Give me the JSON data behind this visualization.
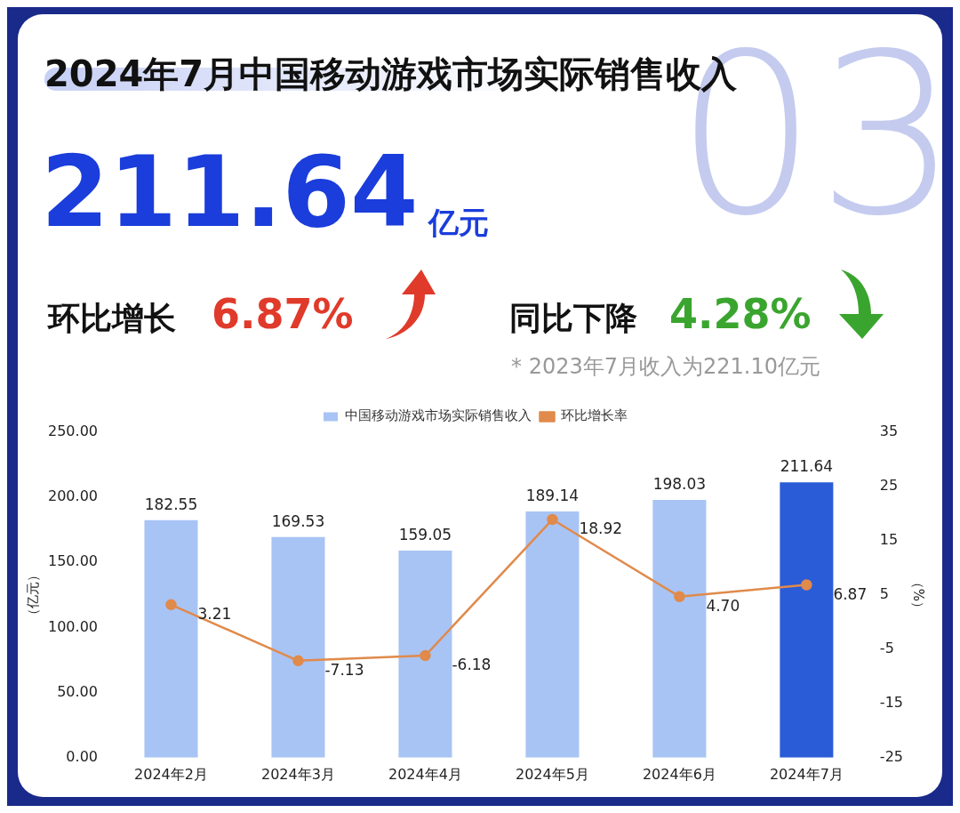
{
  "chart_data": {
    "type": "bar",
    "title": "2024年7月中国移动游戏市场实际销售收入",
    "annotations": [
      "211.64",
      "亿元",
      "环比增长",
      "6.87%",
      "同比下降",
      "4.28%",
      "* 2023年7月收入为221.10亿元",
      "03"
    ],
    "categories": [
      "2024年2月",
      "2024年3月",
      "2024年4月",
      "2024年5月",
      "2024年6月",
      "2024年7月"
    ],
    "series": [
      {
        "name": "中国移动游戏市场实际销售收入",
        "colors": [
          "#a8c4f4",
          "#a8c4f4",
          "#a8c4f4",
          "#a8c4f4",
          "#a8c4f4",
          "#2b5cd8"
        ],
        "values": [
          182.55,
          169.53,
          159.05,
          189.14,
          198.03,
          211.64
        ],
        "value_labels": [
          "182.55",
          "169.53",
          "159.05",
          "189.14",
          "198.03",
          "211.64"
        ]
      },
      {
        "name": "环比增长率",
        "type": "line",
        "axis": "y2",
        "color": "#e08a4b",
        "marker": "circle",
        "values": [
          3.21,
          -7.13,
          -6.18,
          18.92,
          4.7,
          6.87
        ],
        "value_labels": [
          "3.21",
          "-7.13",
          "-6.18",
          "18.92",
          "4.70",
          "6.87"
        ]
      }
    ],
    "ylabel": "（亿元）",
    "y2label": "（%）",
    "ylim": [
      0,
      250
    ],
    "yticks": [
      {
        "value": 0,
        "label": "0.00"
      },
      {
        "value": 50,
        "label": "50.00"
      },
      {
        "value": 100,
        "label": "100.00"
      },
      {
        "value": 150,
        "label": "150.00"
      },
      {
        "value": 200,
        "label": "200.00"
      },
      {
        "value": 250,
        "label": "250.00"
      }
    ],
    "y2lim": [
      -25,
      35
    ],
    "y2ticks": [
      -25,
      -15,
      -5,
      5,
      15,
      25,
      35
    ],
    "legend": "top"
  }
}
